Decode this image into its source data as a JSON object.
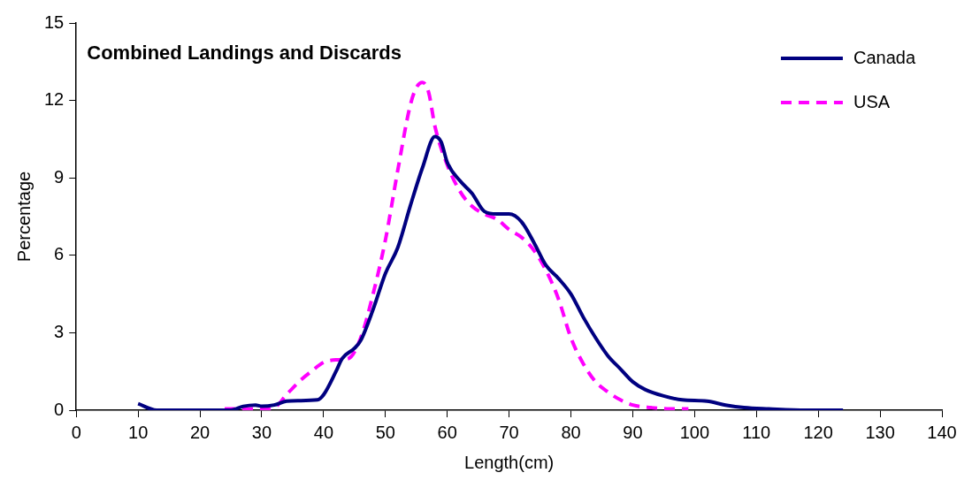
{
  "chart_data": {
    "type": "line",
    "title": "Combined Landings and Discards",
    "xlabel": "Length(cm)",
    "ylabel": "Percentage",
    "xlim": [
      0,
      140
    ],
    "xticks": [
      0,
      10,
      20,
      30,
      40,
      50,
      60,
      70,
      80,
      90,
      100,
      110,
      120,
      130,
      140
    ],
    "ylim": [
      0,
      15
    ],
    "yticks": [
      0,
      3,
      6,
      9,
      12,
      15
    ],
    "grid": false,
    "legend": "top right",
    "marker": "none",
    "series": [
      {
        "name": "Canada",
        "color": "#000080",
        "line_style": "solid",
        "x": [
          10,
          13,
          20,
          25,
          27,
          29,
          30,
          32,
          34,
          36,
          39,
          40,
          42,
          43,
          45,
          46,
          48,
          50,
          52,
          54,
          56,
          58,
          59,
          60,
          62,
          64,
          66,
          68,
          70,
          72,
          74,
          76,
          78,
          80,
          82,
          84,
          86,
          88,
          90,
          92,
          95,
          98,
          102,
          105,
          108,
          112,
          118,
          124
        ],
        "values": [
          0.25,
          0,
          0,
          0,
          0.15,
          0.2,
          0.15,
          0.2,
          0.35,
          0.37,
          0.4,
          0.6,
          1.5,
          2,
          2.4,
          2.7,
          3.9,
          5.3,
          6.3,
          7.9,
          9.4,
          10.6,
          10.4,
          9.6,
          8.9,
          8.4,
          7.7,
          7.6,
          7.6,
          7.3,
          6.5,
          5.6,
          5.1,
          4.5,
          3.6,
          2.8,
          2.1,
          1.6,
          1.1,
          0.8,
          0.55,
          0.4,
          0.35,
          0.2,
          0.1,
          0.05,
          0,
          0
        ]
      },
      {
        "name": "USA",
        "color": "#ff00ff",
        "line_style": "dashed",
        "x": [
          24,
          27,
          30,
          32,
          34,
          36,
          38,
          40,
          42,
          44,
          46,
          48,
          50,
          52,
          54,
          55,
          56,
          57,
          58,
          60,
          62,
          64,
          66,
          68,
          70,
          72,
          74,
          76,
          78,
          80,
          82,
          84,
          86,
          88,
          90,
          93,
          96,
          99
        ],
        "values": [
          0.05,
          0.05,
          0.05,
          0.1,
          0.6,
          1.1,
          1.5,
          1.85,
          1.95,
          2,
          2.8,
          4.5,
          6.6,
          9.3,
          11.8,
          12.5,
          12.7,
          12.3,
          11,
          9.5,
          8.5,
          7.9,
          7.6,
          7.4,
          7,
          6.7,
          6.2,
          5.4,
          4.3,
          2.8,
          1.8,
          1.1,
          0.7,
          0.4,
          0.2,
          0.1,
          0.05,
          0.05
        ]
      }
    ]
  }
}
